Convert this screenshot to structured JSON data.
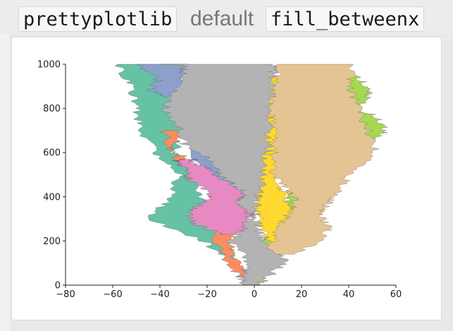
{
  "heading": {
    "lib_name": "prettyplotlib",
    "word": "default",
    "func_name": "fill_betweenx"
  },
  "chart_data": {
    "type": "area",
    "title": "",
    "xlabel": "",
    "ylabel": "",
    "xlim": [
      -80,
      60
    ],
    "ylim": [
      0,
      1000
    ],
    "x_ticks": [
      -80,
      -60,
      -40,
      -20,
      0,
      20,
      40,
      60
    ],
    "y_ticks": [
      0,
      200,
      400,
      600,
      800,
      1000
    ],
    "grid": false,
    "orientation": "fill between two random-walk x curves along y",
    "series": [
      {
        "color": "#66c2a5",
        "y": [
          0,
          100,
          200,
          300,
          400,
          500,
          600,
          700,
          800,
          900,
          1000
        ],
        "x_left": [
          -1,
          -8,
          -22,
          -45,
          -35,
          -32,
          -42,
          -48,
          -50,
          -52,
          -58
        ],
        "x_right": [
          0,
          -6,
          -12,
          -10,
          -24,
          -26,
          -34,
          -30,
          -32,
          -40,
          -28
        ]
      },
      {
        "color": "#fc8d62",
        "y": [
          40,
          130,
          260,
          430,
          560,
          620,
          700
        ],
        "x_left": [
          -6,
          -14,
          -18,
          -18,
          -32,
          -36,
          -38
        ],
        "x_right": [
          -2,
          -8,
          -10,
          -12,
          -28,
          -34,
          -32
        ]
      },
      {
        "color": "#8da0cb",
        "y": [
          380,
          430,
          460,
          500,
          800,
          840,
          880,
          940,
          1000
        ],
        "x_left": [
          -14,
          -18,
          -10,
          -24,
          -30,
          -34,
          -44,
          -40,
          -50
        ],
        "x_right": [
          -6,
          -2,
          -4,
          -8,
          -26,
          -24,
          -24,
          -30,
          -28
        ]
      },
      {
        "color": "#e78ac3",
        "y": [
          230,
          280,
          330,
          380,
          420,
          480,
          520,
          560,
          570
        ],
        "x_left": [
          -14,
          -26,
          -28,
          -20,
          -18,
          -28,
          -28,
          -34,
          -30
        ],
        "x_right": [
          -2,
          -4,
          0,
          -6,
          -2,
          -14,
          -18,
          -28,
          -24
        ]
      },
      {
        "color": "#a6d854",
        "y": [
          0,
          320,
          360,
          400,
          640,
          700,
          760,
          800,
          860,
          900,
          960,
          1000
        ],
        "x_left": [
          -2,
          8,
          12,
          14,
          44,
          40,
          42,
          34,
          32,
          36,
          38,
          -40
        ],
        "x_right": [
          0,
          20,
          28,
          22,
          48,
          56,
          52,
          44,
          48,
          48,
          42,
          -30
        ]
      },
      {
        "color": "#ffd92f",
        "y": [
          10,
          100,
          200,
          300,
          340,
          360,
          420,
          440,
          820,
          900,
          940
        ],
        "x_left": [
          -4,
          4,
          6,
          2,
          0,
          0,
          2,
          0,
          6,
          8,
          6
        ],
        "x_right": [
          2,
          8,
          14,
          22,
          28,
          14,
          14,
          10,
          12,
          14,
          12
        ]
      },
      {
        "color": "#e5c494",
        "y": [
          140,
          200,
          260,
          320,
          360,
          420,
          500,
          600,
          700,
          800,
          900,
          1000
        ],
        "x_left": [
          4,
          8,
          10,
          14,
          18,
          16,
          8,
          8,
          10,
          6,
          8,
          10
        ],
        "x_right": [
          16,
          28,
          32,
          28,
          30,
          36,
          40,
          52,
          48,
          44,
          40,
          42
        ]
      },
      {
        "color": "#b3b3b3",
        "y": [
          0,
          40,
          100,
          200,
          260,
          320,
          380,
          420,
          480,
          560,
          640,
          720,
          800,
          880,
          960,
          1000
        ],
        "x_left": [
          -4,
          -6,
          -2,
          -10,
          -4,
          -2,
          -8,
          -4,
          -12,
          -18,
          -30,
          -32,
          -38,
          -34,
          -30,
          -30
        ],
        "x_right": [
          2,
          6,
          14,
          4,
          2,
          0,
          2,
          2,
          4,
          4,
          6,
          6,
          6,
          8,
          8,
          8
        ]
      }
    ]
  }
}
